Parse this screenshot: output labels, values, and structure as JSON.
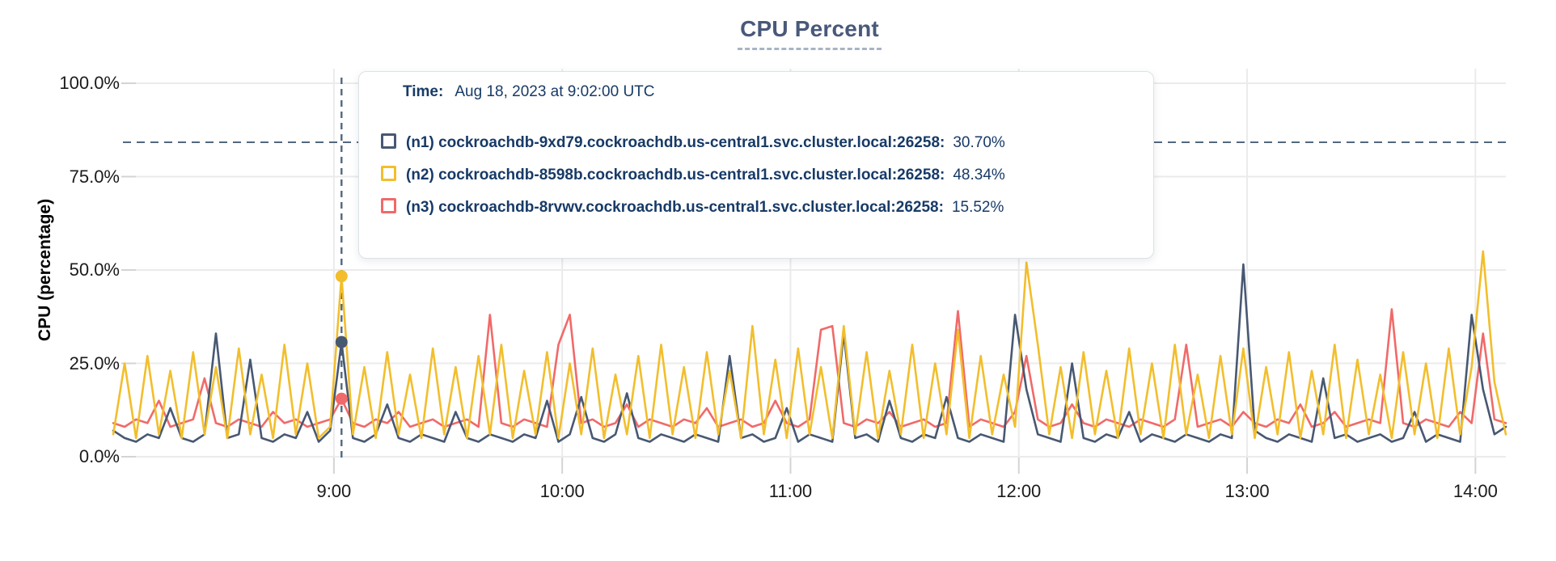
{
  "title": "CPU Percent",
  "tooltip": {
    "time_label": "Time:",
    "time_value": "Aug 18, 2023 at 9:02:00 UTC"
  },
  "chart_data": {
    "type": "line",
    "title": "CPU Percent",
    "xlabel": "",
    "ylabel": "CPU (percentage)",
    "ylim": [
      0,
      100
    ],
    "grid": true,
    "legend_position": "tooltip-overlay",
    "x_unit": "minutes-of-day",
    "x_domain": [
      482,
      848
    ],
    "x_start": 482,
    "x_step": 3,
    "x_ticks": [
      {
        "t": 540,
        "label": "9:00"
      },
      {
        "t": 600,
        "label": "10:00"
      },
      {
        "t": 660,
        "label": "11:00"
      },
      {
        "t": 720,
        "label": "12:00"
      },
      {
        "t": 780,
        "label": "13:00"
      },
      {
        "t": 840,
        "label": "14:00"
      }
    ],
    "y_ticks": [
      {
        "v": 0,
        "label": "0.0%"
      },
      {
        "v": 25,
        "label": "25.0%"
      },
      {
        "v": 50,
        "label": "50.0%"
      },
      {
        "v": 75,
        "label": "75.0%"
      },
      {
        "v": 100,
        "label": "100.0%"
      }
    ],
    "threshold_percent": 84.2,
    "crosshair": {
      "t": 542,
      "time_text": "Aug 18, 2023 at 9:02:00 UTC",
      "points": [
        {
          "series": "n1",
          "value": 30.7
        },
        {
          "series": "n2",
          "value": 48.34
        },
        {
          "series": "n3",
          "value": 15.52
        }
      ]
    },
    "series": [
      {
        "id": "n1",
        "name": "(n1) cockroachdb-9xd79.cockroachdb.us-central1.svc.cluster.local:26258:",
        "tooltip_value": "30.70%",
        "color": "#475872",
        "values": [
          7,
          5,
          4,
          6,
          5,
          13,
          5,
          4,
          6,
          33,
          5,
          6,
          26,
          5,
          4,
          6,
          5,
          12,
          4,
          7,
          30.7,
          5,
          4,
          6,
          14,
          5,
          4,
          6,
          5,
          4,
          12,
          5,
          4,
          6,
          5,
          4,
          6,
          5,
          15,
          4,
          6,
          16,
          5,
          4,
          6,
          17,
          5,
          4,
          6,
          5,
          4,
          6,
          5,
          4,
          27,
          5,
          6,
          4,
          5,
          13,
          4,
          6,
          5,
          4,
          33,
          5,
          6,
          4,
          15,
          5,
          4,
          6,
          5,
          16,
          5,
          4,
          6,
          5,
          4,
          38,
          18,
          6,
          5,
          4,
          25,
          5,
          4,
          6,
          5,
          12,
          4,
          6,
          5,
          4,
          6,
          5,
          4,
          6,
          5,
          51.5,
          7,
          5,
          4,
          6,
          5,
          4,
          21,
          5,
          6,
          4,
          5,
          6,
          4,
          5,
          12,
          4,
          6,
          5,
          4,
          38,
          18,
          6,
          8
        ]
      },
      {
        "id": "n2",
        "name": "(n2) cockroachdb-8598b.cockroachdb.us-central1.svc.cluster.local:26258:",
        "tooltip_value": "48.34%",
        "color": "#f2be2c",
        "values": [
          6,
          25,
          5,
          27,
          6,
          23,
          5,
          28,
          6,
          24,
          5,
          29,
          6,
          22,
          5,
          30,
          6,
          25,
          5,
          8,
          48.34,
          6,
          24,
          5,
          28,
          6,
          22,
          5,
          29,
          6,
          24,
          5,
          27,
          6,
          30,
          5,
          23,
          6,
          28,
          5,
          25,
          6,
          29,
          5,
          22,
          6,
          27,
          5,
          30,
          6,
          24,
          5,
          28,
          6,
          23,
          5,
          35,
          6,
          26,
          5,
          29,
          6,
          24,
          5,
          35,
          6,
          28,
          5,
          23,
          6,
          30,
          5,
          25,
          6,
          34,
          5,
          27,
          6,
          22,
          8,
          52,
          30,
          6,
          24,
          5,
          28,
          6,
          23,
          5,
          29,
          6,
          25,
          5,
          30,
          6,
          22,
          5,
          27,
          6,
          29,
          5,
          24,
          6,
          28,
          5,
          23,
          6,
          30,
          5,
          26,
          6,
          22,
          5,
          28,
          6,
          25,
          5,
          29,
          6,
          24,
          55,
          20,
          6
        ]
      },
      {
        "id": "n3",
        "name": "(n3) cockroachdb-8rvwv.cockroachdb.us-central1.svc.cluster.local:26258:",
        "tooltip_value": "15.52%",
        "color": "#f16969",
        "values": [
          9,
          8,
          10,
          9,
          15,
          8,
          9,
          10,
          21,
          9,
          8,
          10,
          9,
          8,
          12,
          9,
          10,
          8,
          9,
          10,
          15.52,
          9,
          8,
          10,
          9,
          12,
          8,
          9,
          10,
          8,
          9,
          10,
          8,
          38,
          9,
          8,
          10,
          9,
          8,
          30,
          38,
          9,
          10,
          8,
          9,
          14,
          8,
          10,
          9,
          8,
          10,
          9,
          13,
          8,
          9,
          10,
          8,
          9,
          15,
          9,
          8,
          10,
          34,
          35,
          9,
          8,
          10,
          9,
          12,
          8,
          9,
          10,
          8,
          9,
          39,
          8,
          10,
          9,
          8,
          12,
          27,
          10,
          8,
          9,
          14,
          9,
          8,
          10,
          9,
          8,
          10,
          9,
          8,
          10,
          30,
          8,
          9,
          10,
          8,
          12,
          9,
          8,
          10,
          9,
          14,
          8,
          9,
          12,
          8,
          9,
          10,
          9,
          39.5,
          9,
          8,
          10,
          9,
          8,
          12,
          9,
          33,
          10,
          9
        ]
      }
    ]
  }
}
